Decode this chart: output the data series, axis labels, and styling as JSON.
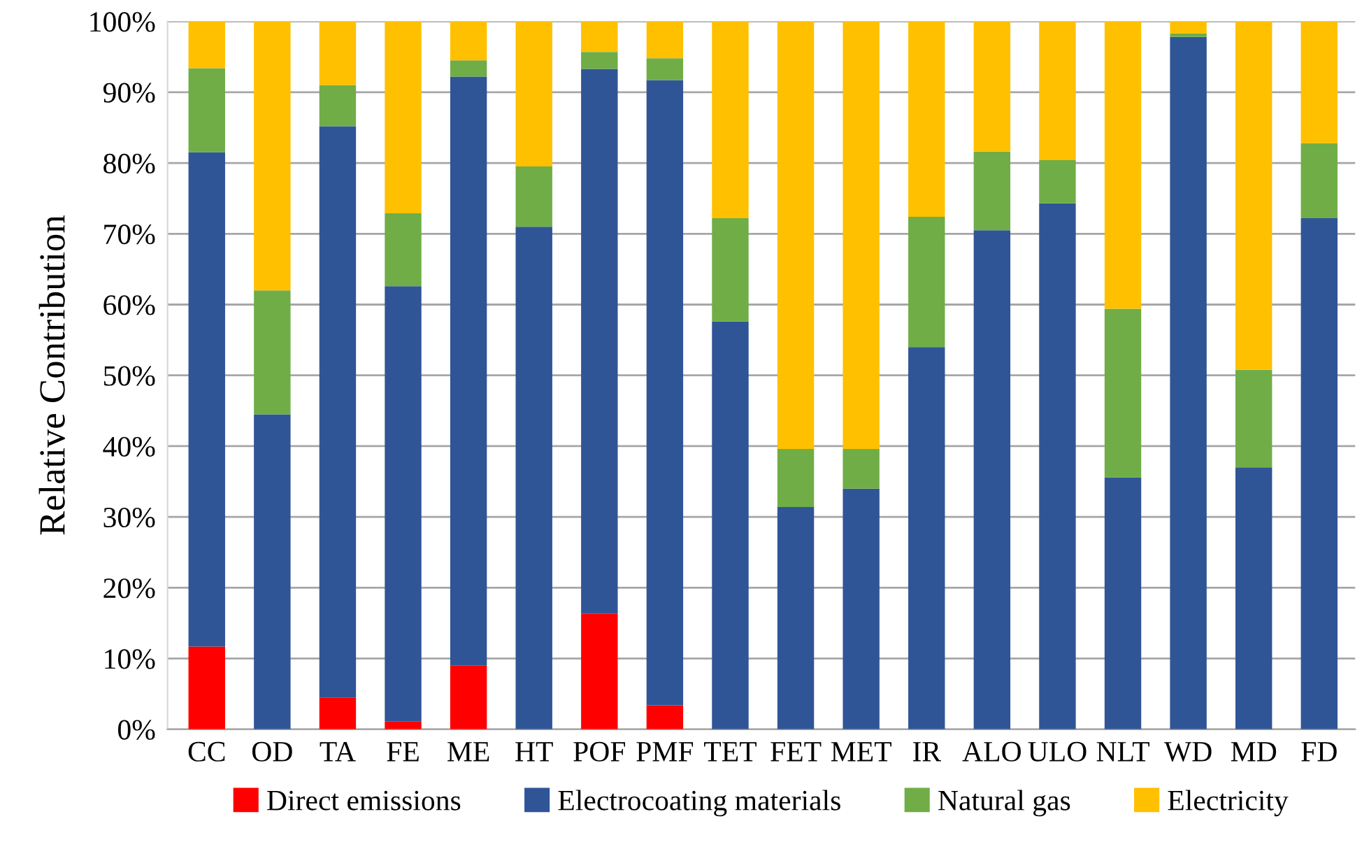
{
  "chart_data": {
    "type": "bar",
    "stacked": true,
    "ylabel": "Relative Contribution",
    "categories": [
      "CC",
      "OD",
      "TA",
      "FE",
      "ME",
      "HT",
      "POF",
      "PMF",
      "TET",
      "FET",
      "MET",
      "IR",
      "ALO",
      "ULO",
      "NLT",
      "WD",
      "MD",
      "FD"
    ],
    "series": [
      {
        "name": "Direct emissions",
        "color": "#ff0000",
        "values": [
          11.7,
          0,
          4.5,
          1.1,
          9,
          0,
          16.3,
          3.4,
          0,
          0,
          0,
          0,
          0,
          0,
          0,
          0,
          0,
          0
        ]
      },
      {
        "name": "Electrocoating materials",
        "color": "#2f5597",
        "values": [
          69.8,
          44.5,
          80.7,
          61.5,
          83.2,
          71,
          77,
          88.3,
          57.6,
          31.4,
          34,
          54,
          70.5,
          74.3,
          35.6,
          97.8,
          37,
          72.2
        ]
      },
      {
        "name": "Natural gas",
        "color": "#70ad47",
        "values": [
          11.9,
          17.5,
          5.8,
          10.3,
          2.3,
          8.5,
          2.4,
          3.1,
          14.6,
          8.2,
          5.6,
          18.4,
          11.1,
          6.1,
          23.8,
          0.5,
          13.8,
          10.6
        ]
      },
      {
        "name": "Electricity",
        "color": "#ffc000",
        "values": [
          6.6,
          38,
          9,
          27.1,
          5.5,
          20.5,
          4.3,
          5.2,
          27.8,
          60.4,
          60.4,
          27.6,
          18.4,
          19.6,
          40.6,
          1.7,
          49.2,
          17.2
        ]
      }
    ],
    "ylim": [
      0,
      100
    ],
    "yticks": [
      {
        "value": 0,
        "label": "0%"
      },
      {
        "value": 10,
        "label": "10%"
      },
      {
        "value": 20,
        "label": "20%"
      },
      {
        "value": 30,
        "label": "30%"
      },
      {
        "value": 40,
        "label": "40%"
      },
      {
        "value": 50,
        "label": "50%"
      },
      {
        "value": 60,
        "label": "60%"
      },
      {
        "value": 70,
        "label": "70%"
      },
      {
        "value": 80,
        "label": "80%"
      },
      {
        "value": 90,
        "label": "90%"
      },
      {
        "value": 100,
        "label": "100%"
      }
    ],
    "grid": "y",
    "legend": "bottom"
  }
}
